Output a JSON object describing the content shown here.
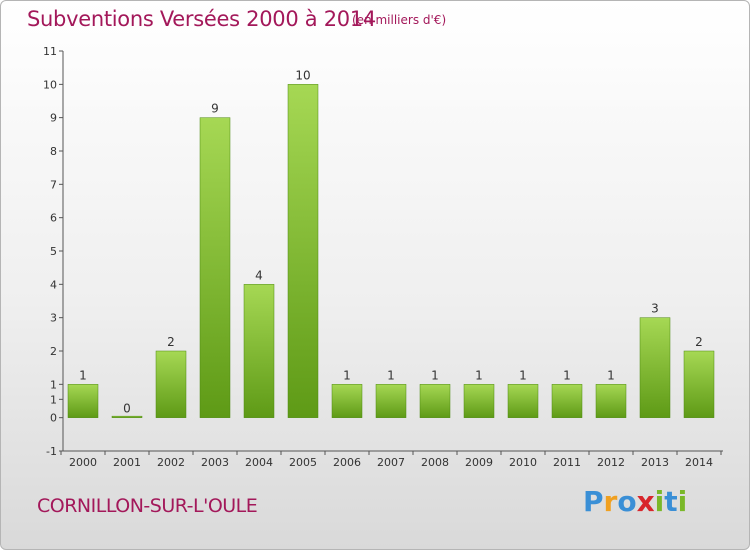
{
  "header": {
    "title": "Subventions Versées 2000 à 2014",
    "unit": "(en milliers d'€)"
  },
  "footer": {
    "commune": "CORNILLON-SUR-L'OULE",
    "logo_letters": [
      "P",
      "r",
      "o",
      "x",
      "i",
      "t",
      "i"
    ]
  },
  "colors": {
    "title": "#a3185a",
    "bar_top": "#a6d854",
    "bar_bottom": "#5e9a16",
    "logo": [
      "#3a8fd6",
      "#f0a020",
      "#3a8fd6",
      "#d8262c",
      "#7ab829",
      "#3a8fd6",
      "#7ab829"
    ]
  },
  "chart_data": {
    "type": "bar",
    "categories": [
      "2000",
      "2001",
      "2002",
      "2003",
      "2004",
      "2005",
      "2006",
      "2007",
      "2008",
      "2009",
      "2010",
      "2011",
      "2012",
      "2013",
      "2014"
    ],
    "values": [
      1,
      0,
      2,
      9,
      4,
      10,
      1,
      1,
      1,
      1,
      1,
      1,
      1,
      3,
      2
    ],
    "ylim": [
      -1,
      11
    ],
    "yticks": [
      "-1",
      "0",
      "1",
      "1",
      "2",
      "3",
      "4",
      "5",
      "6",
      "7",
      "8",
      "9",
      "10",
      "11"
    ],
    "ytick_values": [
      -1,
      0,
      1,
      1,
      2,
      3,
      4,
      5,
      6,
      7,
      8,
      9,
      10,
      11
    ],
    "xlabel": "",
    "ylabel": "",
    "grid": false,
    "legend": false
  }
}
